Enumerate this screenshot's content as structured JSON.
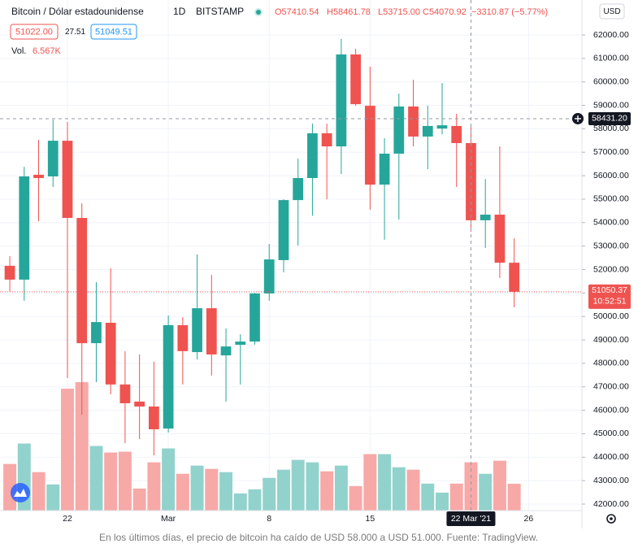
{
  "chart_data": {
    "type": "candlestick",
    "title": "Bitcoin / Dólar estadounidense",
    "interval": "1D",
    "exchange": "BITSTAMP",
    "ohlc_legend": [
      "O57410.54",
      "H58461.78",
      "L53715.00",
      "C54070.92",
      "−3310.87 (−5.77%)"
    ],
    "bid": "51022.00",
    "spread": "27.51",
    "ask": "51049.51",
    "volume_title": "Vol.",
    "volume_label": "6.567K",
    "currency": "USD",
    "up_color": "#26a69a",
    "down_color": "#ef5350",
    "up_volume_color": "#92d2cc",
    "down_volume_color": "#f7a9a7",
    "open": [
      52160,
      51570,
      56040,
      55970,
      57490,
      54200,
      48860,
      49730,
      47100,
      46370,
      46160,
      45220,
      49630,
      48480,
      50350,
      48340,
      48790,
      48930,
      50980,
      52400,
      54960,
      55900,
      57810,
      57250,
      61170,
      58980,
      55620,
      56940,
      58950,
      57670,
      58010,
      58120,
      57390,
      54100,
      54340,
      52290
    ],
    "high": [
      52570,
      56380,
      57530,
      58390,
      58290,
      54820,
      51460,
      52050,
      48520,
      48380,
      48070,
      50040,
      49970,
      52640,
      51770,
      49490,
      49240,
      51010,
      53090,
      54990,
      56730,
      58220,
      58220,
      61830,
      61410,
      60650,
      57600,
      59500,
      60090,
      58980,
      59950,
      58640,
      58080,
      55860,
      57250,
      53330
    ],
    "low": [
      51060,
      50670,
      54060,
      55520,
      47370,
      45810,
      47200,
      46680,
      44600,
      44770,
      44080,
      45050,
      47100,
      48170,
      47480,
      46370,
      47100,
      48800,
      50670,
      51880,
      53020,
      54300,
      55000,
      56070,
      58980,
      54550,
      53270,
      54130,
      57250,
      56280,
      57770,
      55520,
      53610,
      52920,
      51640,
      50390
    ],
    "close": [
      51570,
      55970,
      55900,
      57490,
      54200,
      48860,
      49760,
      47100,
      46300,
      46160,
      45190,
      49630,
      48520,
      50350,
      48380,
      48720,
      48930,
      50980,
      52430,
      54960,
      55900,
      57810,
      57250,
      61170,
      59050,
      55620,
      56940,
      58950,
      57670,
      58120,
      58150,
      57390,
      54100,
      54340,
      52290,
      51050
    ],
    "volume": [
      11.4,
      16.4,
      9.4,
      6.4,
      29.8,
      31.4,
      15.8,
      14.2,
      14.4,
      5.4,
      11.8,
      15.2,
      9.0,
      11.0,
      10.2,
      9.4,
      4.2,
      5.2,
      8.0,
      10.0,
      12.4,
      11.8,
      9.6,
      11.0,
      6.0,
      13.8,
      13.8,
      10.6,
      10.0,
      6.6,
      4.4,
      6.6,
      11.8,
      9.0,
      12.2,
      6.567
    ],
    "xlim": [
      -0.68,
      39.7
    ],
    "xticks": [
      {
        "value": 4,
        "label": "22"
      },
      {
        "value": 11,
        "label": "Mar"
      },
      {
        "value": 18,
        "label": "8"
      },
      {
        "value": 25,
        "label": "15"
      },
      {
        "value": 36,
        "label": "26"
      }
    ],
    "ylim": [
      41723,
      63490
    ],
    "yticks": [
      {
        "value": 42000,
        "label": "42000.00"
      },
      {
        "value": 43000,
        "label": "43000.00"
      },
      {
        "value": 44000,
        "label": "44000.00"
      },
      {
        "value": 45000,
        "label": "45000.00"
      },
      {
        "value": 46000,
        "label": "46000.00"
      },
      {
        "value": 47000,
        "label": "47000.00"
      },
      {
        "value": 48000,
        "label": "48000.00"
      },
      {
        "value": 49000,
        "label": "49000.00"
      },
      {
        "value": 50000,
        "label": "50000.00"
      },
      {
        "value": 51000,
        "label": "51000.00"
      },
      {
        "value": 52000,
        "label": "52000.00"
      },
      {
        "value": 53000,
        "label": "53000.00"
      },
      {
        "value": 54000,
        "label": "54000.00"
      },
      {
        "value": 55000,
        "label": "55000.00"
      },
      {
        "value": 56000,
        "label": "56000.00"
      },
      {
        "value": 57000,
        "label": "57000.00"
      },
      {
        "value": 58000,
        "label": "58000.00"
      },
      {
        "value": 59000,
        "label": "59000.00"
      },
      {
        "value": 60000,
        "label": "60000.00"
      },
      {
        "value": 61000,
        "label": "61000.00"
      },
      {
        "value": 62000,
        "label": "62000.00"
      }
    ],
    "grid": true,
    "crosshair": {
      "x": 32,
      "x_label": "22 Mar '21",
      "y": 58431.2,
      "y_label": "58431.20"
    },
    "last_price": {
      "value": 51050.37,
      "label": "51050.37",
      "countdown": "10:52:51"
    },
    "caption": "En los últimos días, el precio de bitcoin ha caído de USD 58.000 a USD 51.000. Fuente: TradingView."
  }
}
